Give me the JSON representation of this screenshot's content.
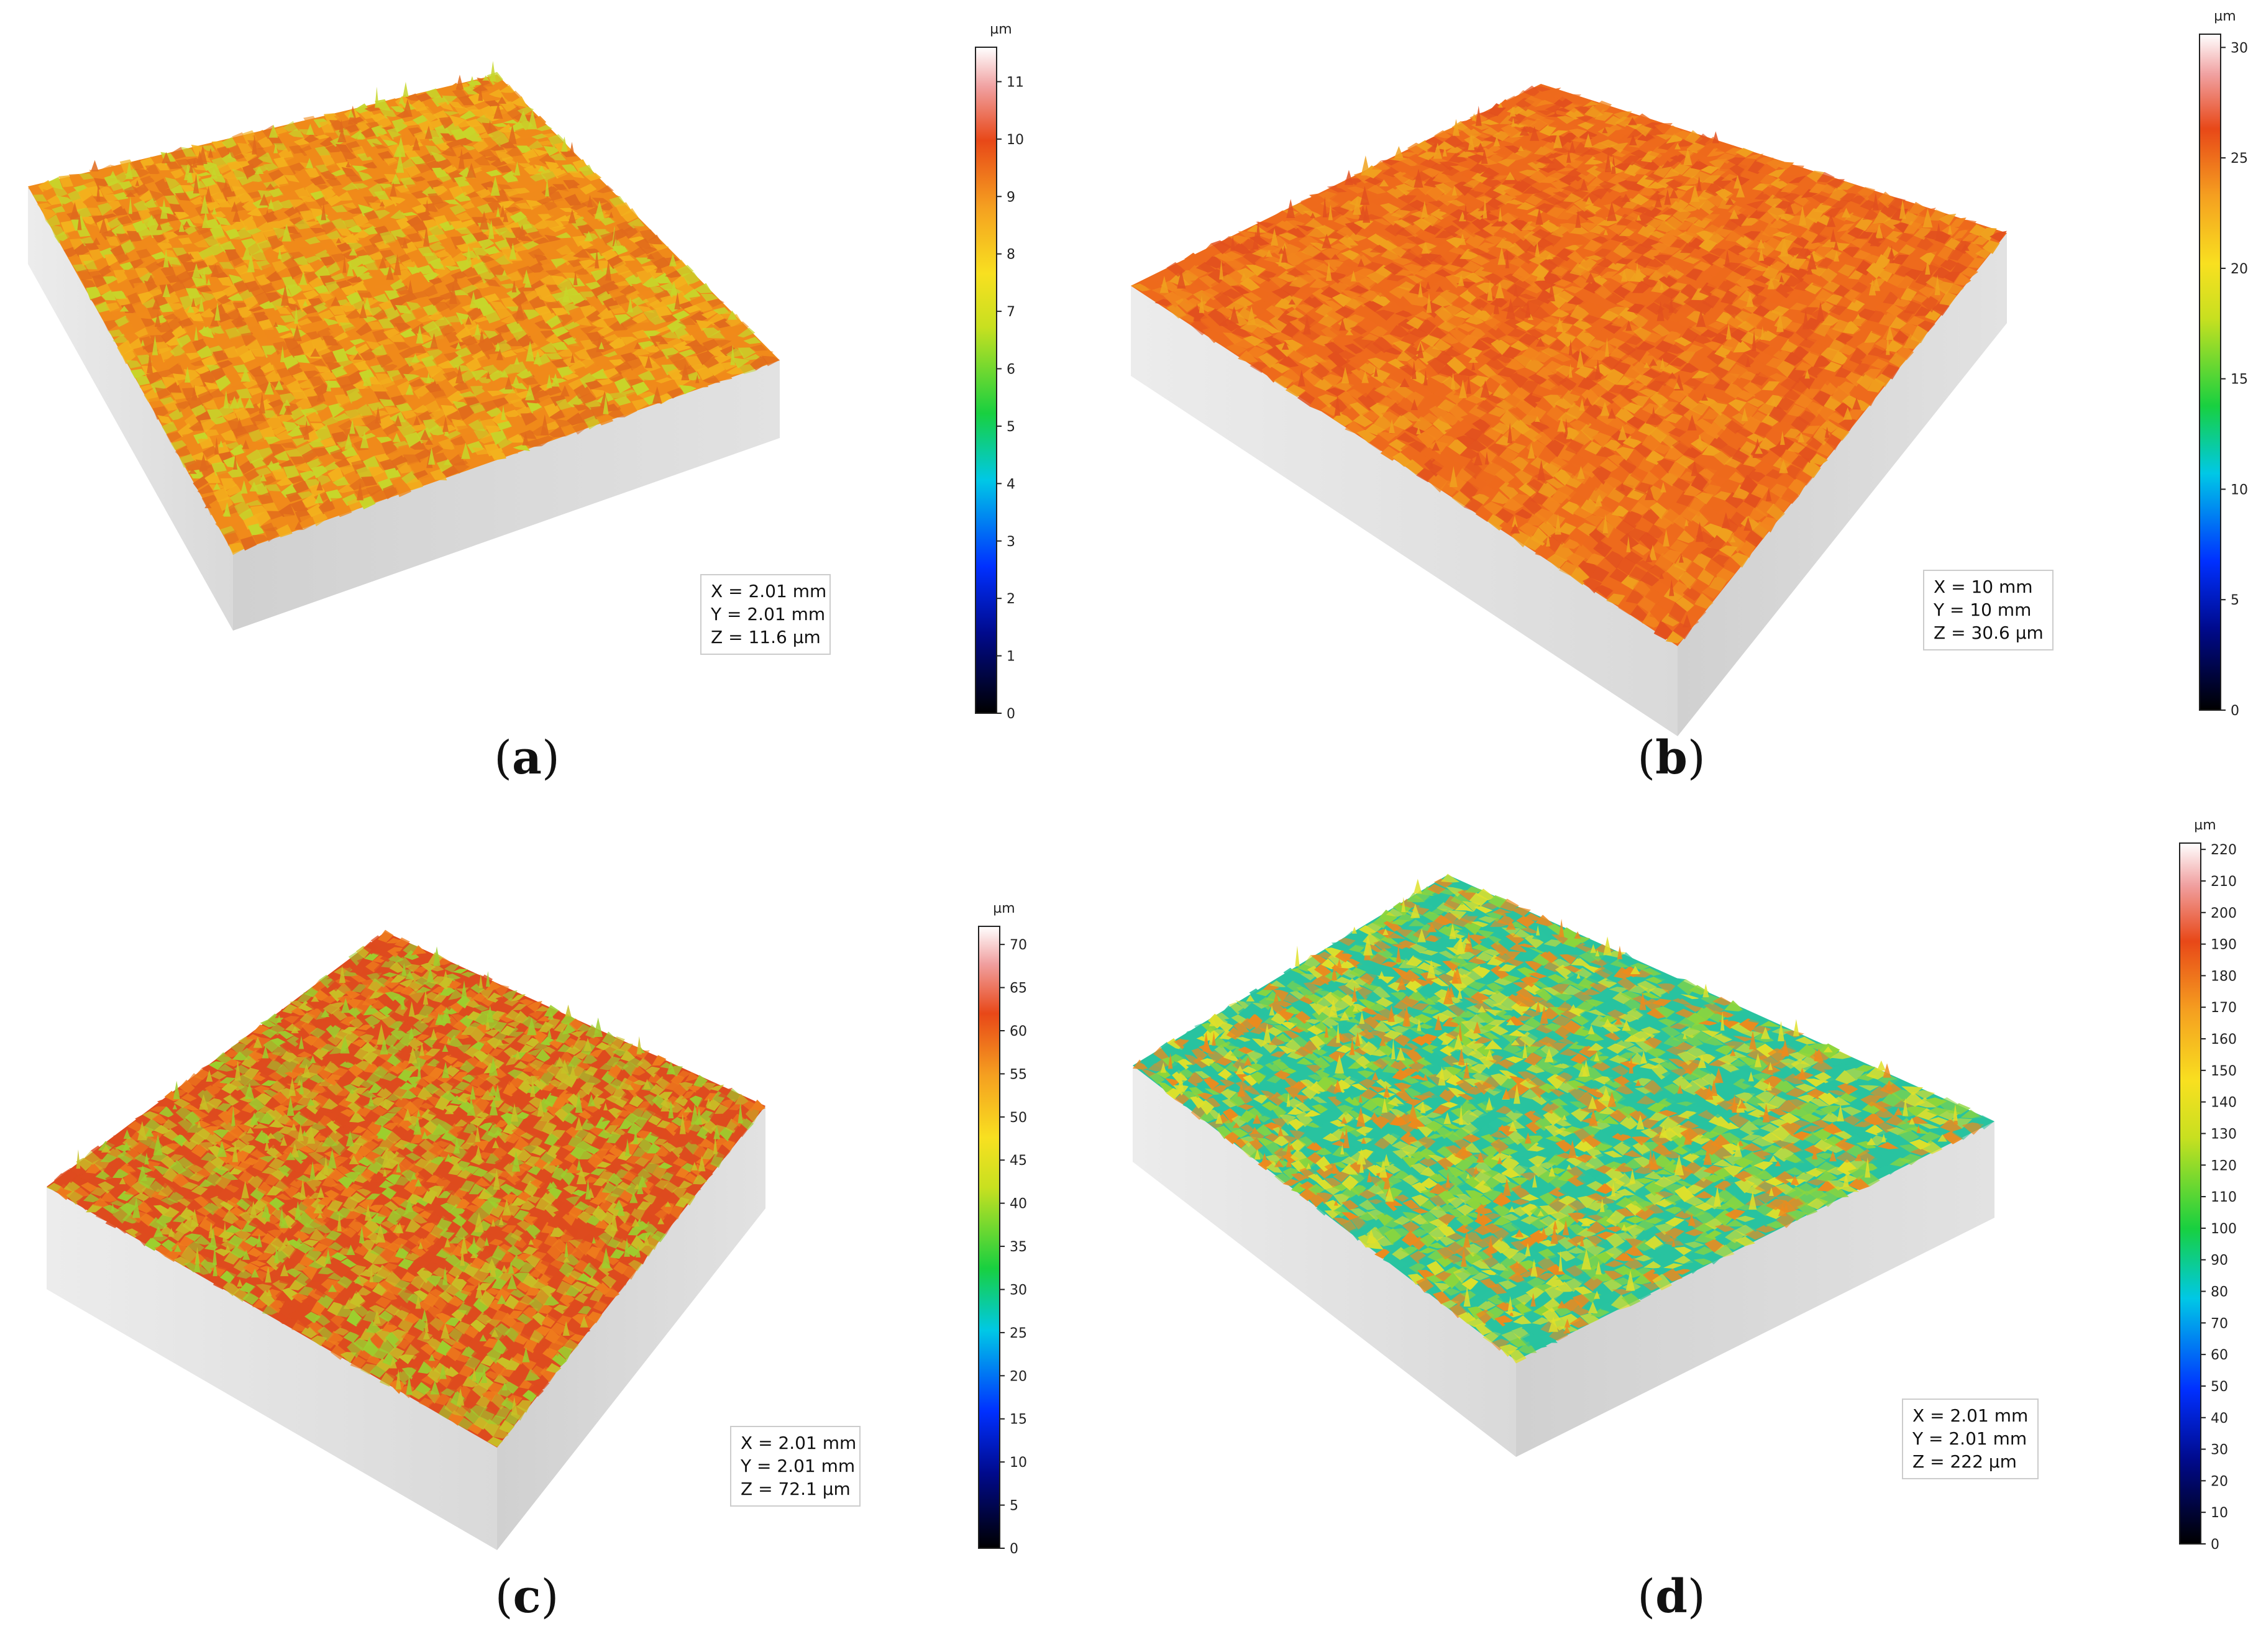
{
  "figure": {
    "panels": [
      {
        "id": "a",
        "caption": "(a)",
        "unit": "µm",
        "colorbar_ticks": [
          "0",
          "1",
          "2",
          "3",
          "4",
          "5",
          "6",
          "7",
          "8",
          "9",
          "10",
          "11"
        ],
        "colorbar_range": [
          0,
          11.6
        ],
        "info": [
          "X = 2.01 mm",
          "Y = 2.01 mm",
          "Z = 11.6 µm"
        ],
        "surface_palette": [
          "#f08a1a",
          "#f3b21d",
          "#e06a1c",
          "#c7d62a"
        ]
      },
      {
        "id": "b",
        "caption": "(b)",
        "unit": "µm",
        "colorbar_ticks": [
          "0",
          "5",
          "10",
          "15",
          "20",
          "25",
          "30"
        ],
        "colorbar_range": [
          0,
          30.6
        ],
        "info": [
          "X = 10 mm",
          "Y = 10 mm",
          "Z = 30.6 µm"
        ],
        "surface_palette": [
          "#ee6a1c",
          "#f2851d",
          "#e2501e",
          "#f0a21e"
        ]
      },
      {
        "id": "c",
        "caption": "(c)",
        "unit": "µm",
        "colorbar_ticks": [
          "0",
          "5",
          "10",
          "15",
          "20",
          "25",
          "30",
          "35",
          "40",
          "45",
          "50",
          "55",
          "60",
          "65",
          "70"
        ],
        "colorbar_range": [
          0,
          72.1
        ],
        "info": [
          "X = 2.01 mm",
          "Y = 2.01 mm",
          "Z = 72.1 µm"
        ],
        "surface_palette": [
          "#de4b1e",
          "#ee7c1c",
          "#c8c126",
          "#9ccf2e"
        ]
      },
      {
        "id": "d",
        "caption": "(d)",
        "unit": "µm",
        "colorbar_ticks": [
          "0",
          "10",
          "20",
          "30",
          "40",
          "50",
          "60",
          "70",
          "80",
          "90",
          "100",
          "110",
          "120",
          "130",
          "140",
          "150",
          "160",
          "170",
          "180",
          "190",
          "200",
          "210",
          "220"
        ],
        "colorbar_range": [
          0,
          222
        ],
        "info": [
          "X = 2.01 mm",
          "Y = 2.01 mm",
          "Z = 222 µm"
        ],
        "surface_palette": [
          "#28c3a0",
          "#8ed63a",
          "#dfe02a",
          "#ee8a1c"
        ]
      }
    ]
  }
}
